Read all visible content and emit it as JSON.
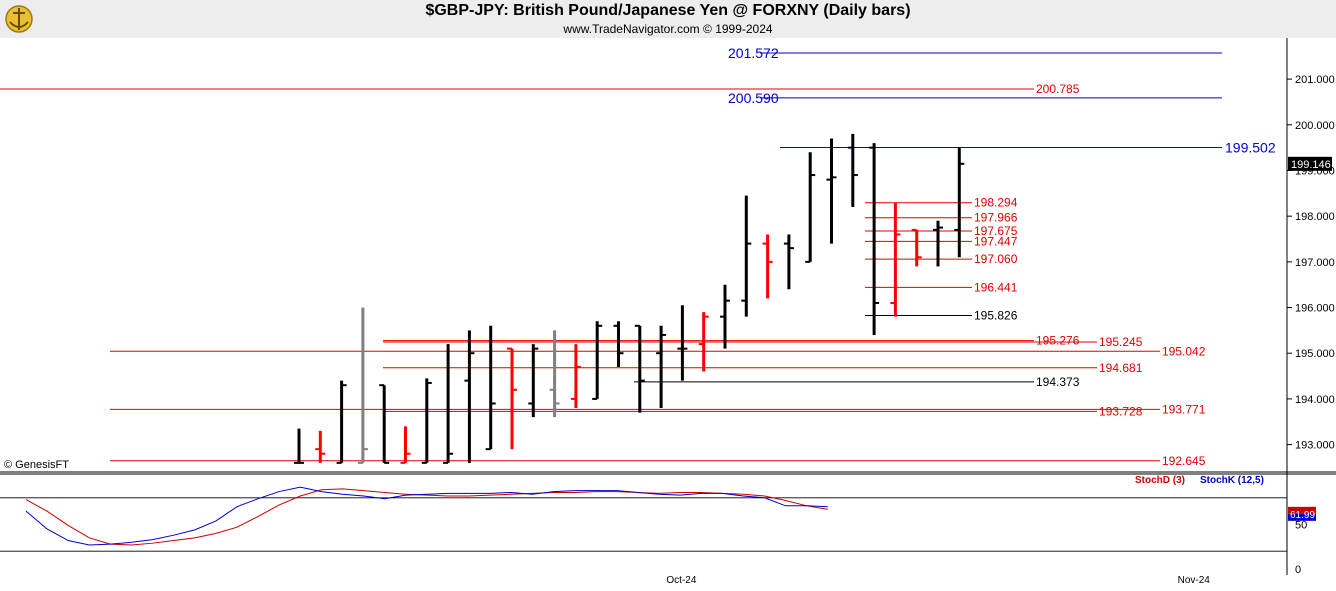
{
  "header": {
    "title": "$GBP-JPY:  British Pound/Japanese Yen @ FORXNY  (Daily bars)",
    "subtitle": "www.TradeNavigator.com © 1999-2024",
    "logo_icon": "trade-navigator-logo-icon"
  },
  "watermark": "© GenesisFT",
  "colors": {
    "up_bar": "#000000",
    "down_bar": "#ff0000",
    "neutral_bar": "#808080",
    "blue_level": "#0000cc",
    "red_level": "#e00000",
    "stoch_d": "#cc0000",
    "stoch_k": "#0000cc"
  },
  "chart_data": [
    {
      "type": "ohlc",
      "series_name": "$GBP-JPY",
      "ylim": [
        192.4,
        201.9
      ],
      "y_ticks": [
        "193.000",
        "194.000",
        "195.000",
        "196.000",
        "197.000",
        "198.000",
        "199.000",
        "200.000",
        "201.000"
      ],
      "x_ticks": [
        {
          "label": "Oct-24",
          "bar": 18
        },
        {
          "label": "Nov-24",
          "bar": 42
        }
      ],
      "last_price": "199.146",
      "bars": [
        {
          "o": 192.6,
          "h": 193.35,
          "l": 192.6,
          "c": 192.6,
          "dir": "up"
        },
        {
          "o": 192.9,
          "h": 193.3,
          "l": 192.6,
          "c": 192.8,
          "dir": "down"
        },
        {
          "o": 192.6,
          "h": 194.4,
          "l": 192.6,
          "c": 194.3,
          "dir": "up"
        },
        {
          "o": 192.6,
          "h": 196.0,
          "l": 192.6,
          "c": 192.9,
          "dir": "neutral"
        },
        {
          "o": 194.3,
          "h": 194.3,
          "l": 192.6,
          "c": 192.6,
          "dir": "up"
        },
        {
          "o": 192.6,
          "h": 193.4,
          "l": 192.6,
          "c": 192.8,
          "dir": "down"
        },
        {
          "o": 192.6,
          "h": 194.45,
          "l": 192.6,
          "c": 194.35,
          "dir": "up"
        },
        {
          "o": 192.6,
          "h": 195.2,
          "l": 192.6,
          "c": 192.8,
          "dir": "up"
        },
        {
          "o": 194.4,
          "h": 195.5,
          "l": 192.6,
          "c": 195.0,
          "dir": "up"
        },
        {
          "o": 192.9,
          "h": 195.6,
          "l": 192.9,
          "c": 193.9,
          "dir": "up"
        },
        {
          "o": 195.1,
          "h": 195.1,
          "l": 192.9,
          "c": 194.2,
          "dir": "down"
        },
        {
          "o": 193.9,
          "h": 195.2,
          "l": 193.6,
          "c": 195.1,
          "dir": "up"
        },
        {
          "o": 194.2,
          "h": 195.5,
          "l": 193.6,
          "c": 193.9,
          "dir": "neutral"
        },
        {
          "o": 194.0,
          "h": 195.2,
          "l": 193.8,
          "c": 194.7,
          "dir": "down"
        },
        {
          "o": 194.0,
          "h": 195.7,
          "l": 194.0,
          "c": 195.6,
          "dir": "up"
        },
        {
          "o": 195.6,
          "h": 195.7,
          "l": 194.7,
          "c": 195.0,
          "dir": "up"
        },
        {
          "o": 195.6,
          "h": 195.6,
          "l": 193.7,
          "c": 194.4,
          "dir": "up"
        },
        {
          "o": 195.0,
          "h": 195.6,
          "l": 193.8,
          "c": 195.4,
          "dir": "up"
        },
        {
          "o": 195.1,
          "h": 196.05,
          "l": 194.4,
          "c": 195.1,
          "dir": "up"
        },
        {
          "o": 195.2,
          "h": 195.9,
          "l": 194.6,
          "c": 195.8,
          "dir": "down"
        },
        {
          "o": 195.8,
          "h": 196.5,
          "l": 195.1,
          "c": 196.15,
          "dir": "up"
        },
        {
          "o": 196.15,
          "h": 198.45,
          "l": 195.8,
          "c": 197.4,
          "dir": "up"
        },
        {
          "o": 197.4,
          "h": 197.6,
          "l": 196.2,
          "c": 197.0,
          "dir": "down"
        },
        {
          "o": 197.4,
          "h": 197.6,
          "l": 196.4,
          "c": 197.3,
          "dir": "up"
        },
        {
          "o": 197.0,
          "h": 199.4,
          "l": 197.0,
          "c": 198.9,
          "dir": "up"
        },
        {
          "o": 198.8,
          "h": 199.7,
          "l": 197.4,
          "c": 198.85,
          "dir": "up"
        },
        {
          "o": 199.5,
          "h": 199.8,
          "l": 198.2,
          "c": 198.9,
          "dir": "up"
        },
        {
          "o": 199.5,
          "h": 199.6,
          "l": 195.4,
          "c": 196.1,
          "dir": "up"
        },
        {
          "o": 196.1,
          "h": 198.3,
          "l": 195.8,
          "c": 197.6,
          "dir": "down"
        },
        {
          "o": 197.7,
          "h": 197.7,
          "l": 196.9,
          "c": 197.1,
          "dir": "down"
        },
        {
          "o": 197.7,
          "h": 197.9,
          "l": 196.9,
          "c": 197.75,
          "dir": "up"
        },
        {
          "o": 197.7,
          "h": 199.5,
          "l": 197.1,
          "c": 199.146,
          "dir": "up"
        }
      ],
      "levels": [
        {
          "value": 201.572,
          "label": "201.572",
          "color": "blue",
          "align": "left-label"
        },
        {
          "value": 200.785,
          "label": "200.785",
          "color": "red"
        },
        {
          "value": 200.59,
          "label": "200.590",
          "color": "blue",
          "align": "left-label"
        },
        {
          "value": 199.502,
          "label": "199.502",
          "color": "blue"
        },
        {
          "value": 198.294,
          "label": "198.294",
          "color": "red"
        },
        {
          "value": 197.966,
          "label": "197.966",
          "color": "red"
        },
        {
          "value": 197.675,
          "label": "197.675",
          "color": "red"
        },
        {
          "value": 197.447,
          "label": "197.447",
          "color": "red"
        },
        {
          "value": 197.06,
          "label": "197.060",
          "color": "red"
        },
        {
          "value": 196.441,
          "label": "196.441",
          "color": "red"
        },
        {
          "value": 195.826,
          "label": "195.826",
          "color": "black"
        },
        {
          "value": 195.276,
          "label": "195.276",
          "color": "red"
        },
        {
          "value": 195.245,
          "label": "195.245",
          "color": "red"
        },
        {
          "value": 195.042,
          "label": "195.042",
          "color": "red"
        },
        {
          "value": 194.681,
          "label": "194.681",
          "color": "red"
        },
        {
          "value": 194.373,
          "label": "194.373",
          "color": "black"
        },
        {
          "value": 193.771,
          "label": "193.771",
          "color": "red"
        },
        {
          "value": 193.728,
          "label": "193.728",
          "color": "red"
        },
        {
          "value": 192.645,
          "label": "192.645",
          "color": "red"
        }
      ]
    },
    {
      "type": "line",
      "ylim": [
        0,
        100
      ],
      "y_ticks": [
        "50",
        "0"
      ],
      "guide_lines": [
        80,
        20
      ],
      "last_value": "61.99",
      "series": [
        {
          "name": "StochD (3)",
          "key": "d",
          "values": [
            78,
            65,
            49,
            35,
            28,
            27,
            29,
            32,
            35,
            40,
            47,
            59,
            72,
            82,
            89,
            90,
            88,
            86,
            84,
            83,
            82,
            82,
            83,
            84,
            85,
            86,
            86,
            87,
            87,
            86,
            85,
            86,
            86,
            85,
            84,
            82,
            77,
            71,
            67
          ]
        },
        {
          "name": "StochK (12,5)",
          "key": "k",
          "values": [
            65,
            45,
            32,
            27,
            28,
            30,
            33,
            38,
            44,
            54,
            70,
            79,
            87,
            92,
            87,
            84,
            82,
            79,
            83,
            84,
            85,
            85,
            85,
            86,
            84,
            87,
            88,
            88,
            88,
            86,
            84,
            83,
            85,
            85,
            82,
            80,
            71,
            71,
            70
          ]
        }
      ]
    }
  ]
}
